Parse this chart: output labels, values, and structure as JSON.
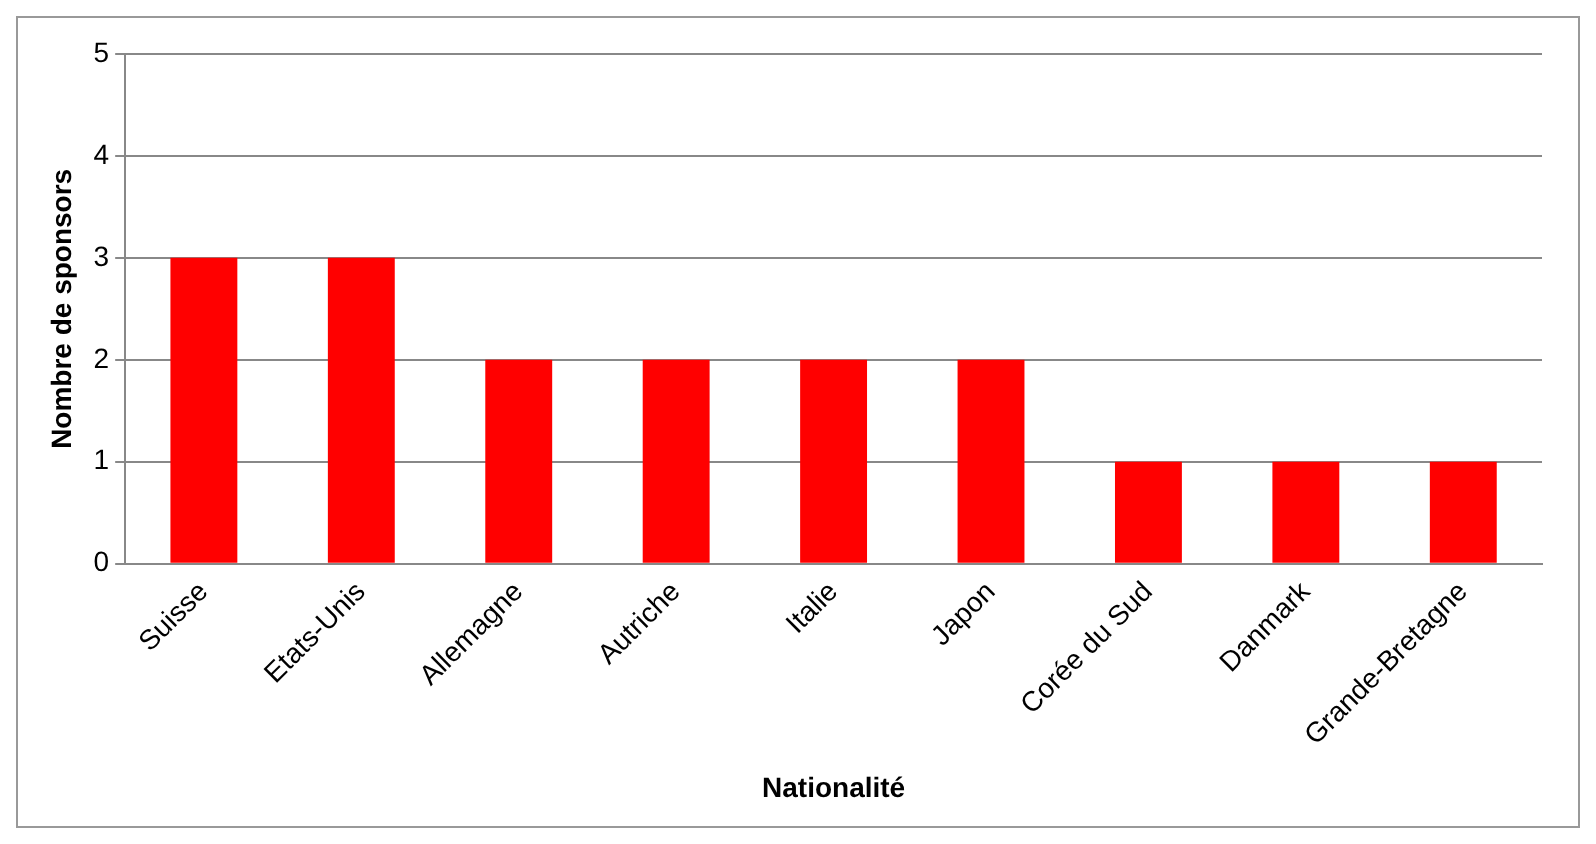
{
  "chart_data": {
    "type": "bar",
    "xlabel": "Nationalité",
    "ylabel": "Nombre de sponsors",
    "categories": [
      "Suisse",
      "Etats-Unis",
      "Allemagne",
      "Autriche",
      "Italie",
      "Japon",
      "Corée du Sud",
      "Danmark",
      "Grande-Bretagne"
    ],
    "values": [
      3,
      3,
      2,
      2,
      2,
      2,
      1,
      1,
      1
    ],
    "color": "#ff0000",
    "ylim": [
      0,
      5
    ],
    "yticks": [
      0,
      1,
      2,
      3,
      4,
      5
    ],
    "grid": "y",
    "legend": false
  }
}
